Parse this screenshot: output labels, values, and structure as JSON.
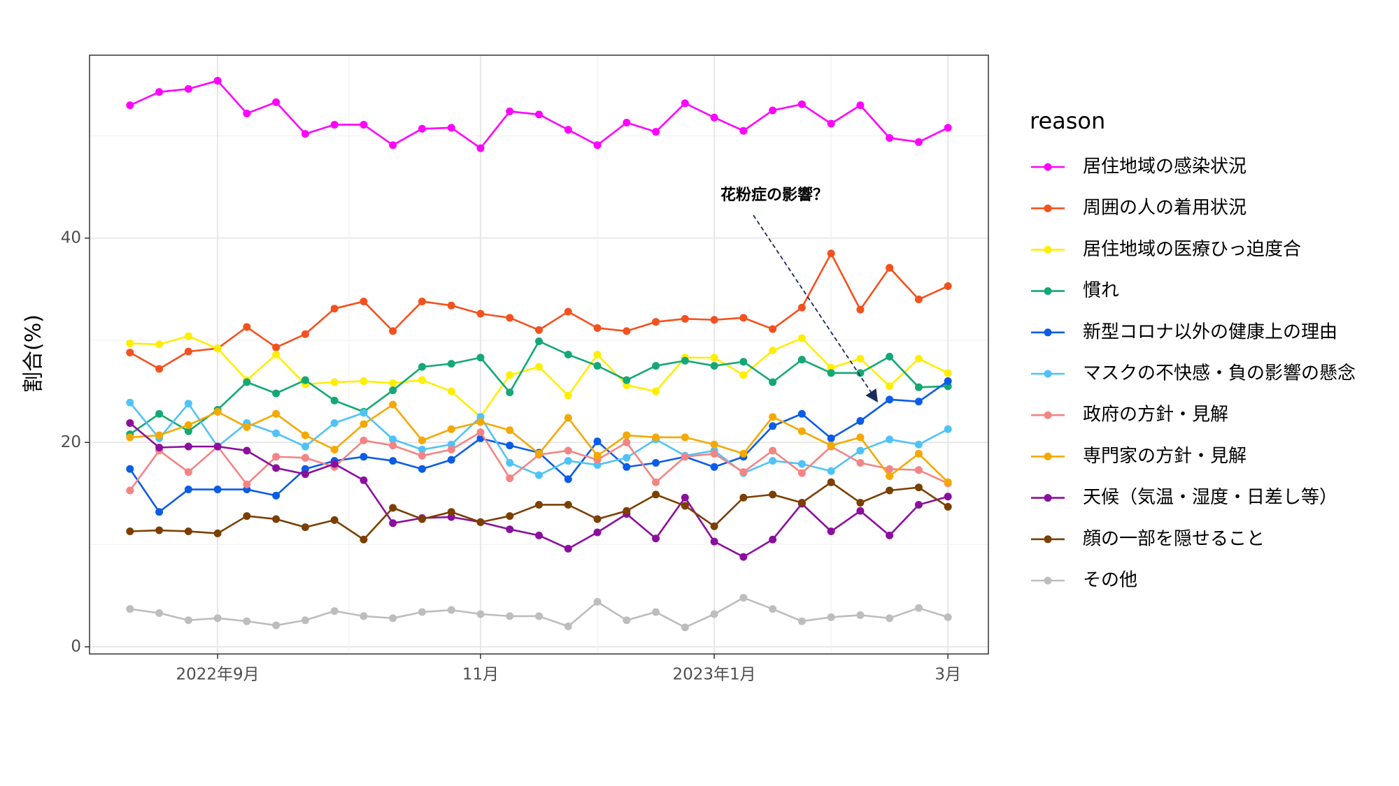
{
  "chart_data": {
    "type": "line",
    "y_label": "割合(%)",
    "legend_title": "reason",
    "annotation": "花粉症の影響？",
    "categories": [
      null,
      null,
      null,
      "2022年9月",
      null,
      null,
      null,
      null,
      null,
      null,
      null,
      null,
      "11月",
      null,
      null,
      null,
      null,
      null,
      null,
      null,
      "2023年1月",
      null,
      null,
      null,
      null,
      null,
      null,
      null,
      "3月"
    ],
    "ylim": [
      -0.7,
      57.9
    ],
    "yticks": [
      0,
      20,
      40
    ],
    "grid": true,
    "legend": "right",
    "series": [
      {
        "name": "居住地域の感染状況",
        "color": "#ff00ff",
        "values": [
          53.0,
          54.3,
          54.6,
          55.4,
          52.2,
          53.3,
          50.2,
          51.1,
          51.1,
          49.1,
          50.7,
          50.8,
          48.8,
          52.4,
          52.1,
          50.6,
          49.1,
          51.3,
          50.4,
          53.2,
          51.8,
          50.5,
          52.5,
          53.1,
          51.2,
          53.0,
          49.8,
          49.4,
          50.8
        ]
      },
      {
        "name": "周囲の人の着用状況",
        "color": "#f4511e",
        "values": [
          28.8,
          27.2,
          28.9,
          29.2,
          31.3,
          29.3,
          30.6,
          33.1,
          33.8,
          30.9,
          33.8,
          33.4,
          32.6,
          32.2,
          31.0,
          32.8,
          31.2,
          30.9,
          31.8,
          32.1,
          32.0,
          32.2,
          31.1,
          33.2,
          38.5,
          33.0,
          37.1,
          34.0,
          35.3
        ]
      },
      {
        "name": "居住地域の医療ひっ迫度合",
        "color": "#ffee00",
        "values": [
          29.7,
          29.6,
          30.4,
          29.2,
          26.1,
          28.6,
          25.7,
          25.9,
          26.0,
          25.8,
          26.1,
          25.0,
          22.5,
          26.6,
          27.4,
          24.6,
          28.6,
          25.6,
          25.0,
          28.3,
          28.3,
          26.6,
          29.0,
          30.2,
          27.3,
          28.2,
          25.5,
          28.2,
          26.8
        ]
      },
      {
        "name": "慣れ",
        "color": "#14a874",
        "values": [
          20.8,
          22.8,
          21.1,
          23.2,
          25.9,
          24.8,
          26.1,
          24.1,
          23.0,
          25.1,
          27.4,
          27.7,
          28.3,
          24.9,
          29.9,
          28.6,
          27.5,
          26.1,
          27.5,
          28.0,
          27.5,
          27.9,
          25.9,
          28.1,
          26.8,
          26.8,
          28.4,
          25.4,
          25.5
        ]
      },
      {
        "name": "新型コロナ以外の健康上の理由",
        "color": "#0b5ce6",
        "values": [
          17.4,
          13.2,
          15.4,
          15.4,
          15.4,
          14.8,
          17.4,
          18.2,
          18.6,
          18.2,
          17.4,
          18.3,
          20.4,
          19.7,
          19.0,
          16.4,
          20.1,
          17.6,
          18.0,
          18.6,
          17.6,
          18.6,
          21.6,
          22.8,
          20.4,
          22.1,
          24.2,
          24.0,
          26.0
        ]
      },
      {
        "name": "マスクの不快感・負の影響の懸念",
        "color": "#4fc3f7",
        "values": [
          23.9,
          20.4,
          23.8,
          19.6,
          21.9,
          20.9,
          19.6,
          21.9,
          22.9,
          20.3,
          19.3,
          19.8,
          22.5,
          18.0,
          16.8,
          18.2,
          17.8,
          18.5,
          20.3,
          18.7,
          19.2,
          17.0,
          18.2,
          17.9,
          17.2,
          19.2,
          20.3,
          19.8,
          21.3
        ]
      },
      {
        "name": "政府の方針・見解",
        "color": "#f48484",
        "values": [
          15.3,
          19.2,
          17.1,
          19.6,
          15.9,
          18.6,
          18.5,
          17.6,
          20.2,
          19.7,
          18.7,
          19.3,
          21.0,
          16.5,
          18.8,
          19.2,
          18.3,
          20.0,
          16.1,
          18.6,
          18.9,
          17.1,
          19.2,
          17.0,
          19.6,
          18.0,
          17.4,
          17.3,
          16.0
        ]
      },
      {
        "name": "専門家の方針・見解",
        "color": "#f5a800",
        "values": [
          20.5,
          20.7,
          21.7,
          23.0,
          21.5,
          22.8,
          20.7,
          19.3,
          21.8,
          23.7,
          20.2,
          21.3,
          22.0,
          21.2,
          18.9,
          22.4,
          18.7,
          20.7,
          20.5,
          20.5,
          19.8,
          18.9,
          22.5,
          21.1,
          19.7,
          20.5,
          16.7,
          18.9,
          16.1
        ]
      },
      {
        "name": "天候（気温・湿度・日差し等）",
        "color": "#8b0f9e",
        "values": [
          21.9,
          19.5,
          19.6,
          19.6,
          19.2,
          17.5,
          16.9,
          17.9,
          16.3,
          12.1,
          12.6,
          12.7,
          12.2,
          11.5,
          10.9,
          9.6,
          11.2,
          13.0,
          10.6,
          14.6,
          10.3,
          8.8,
          10.5,
          14.0,
          11.3,
          13.3,
          10.9,
          13.9,
          14.7
        ]
      },
      {
        "name": "顔の一部を隠せること",
        "color": "#7b3f00",
        "values": [
          11.3,
          11.4,
          11.3,
          11.1,
          12.8,
          12.5,
          11.7,
          12.4,
          10.5,
          13.6,
          12.5,
          13.2,
          12.2,
          12.8,
          13.9,
          13.9,
          12.5,
          13.3,
          14.9,
          13.8,
          11.8,
          14.6,
          14.9,
          14.1,
          16.1,
          14.1,
          15.3,
          15.6,
          13.7
        ]
      },
      {
        "name": "その他",
        "color": "#bdbdbd",
        "values": [
          3.7,
          3.3,
          2.6,
          2.8,
          2.5,
          2.1,
          2.6,
          3.5,
          3.0,
          2.8,
          3.4,
          3.6,
          3.2,
          3.0,
          3.0,
          2.0,
          4.4,
          2.6,
          3.4,
          1.9,
          3.2,
          4.8,
          3.7,
          2.5,
          2.9,
          3.1,
          2.8,
          3.8,
          2.9
        ]
      }
    ]
  }
}
